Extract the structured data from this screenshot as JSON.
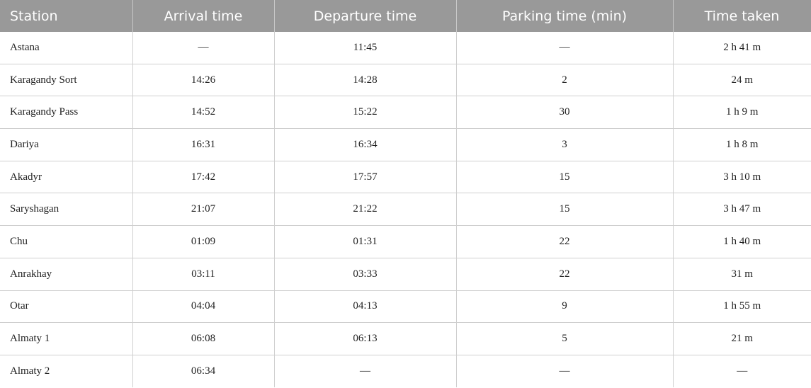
{
  "colors": {
    "header_bg": "#999999",
    "header_text": "#ffffff",
    "grid": "#cfcfcf"
  },
  "table": {
    "headers": [
      "Station",
      "Arrival time",
      "Departure time",
      "Parking time (min)",
      "Time taken"
    ],
    "rows": [
      [
        "Astana",
        "—",
        "11:45",
        "—",
        "2 h 41 m"
      ],
      [
        "Karagandy Sort",
        "14:26",
        "14:28",
        "2",
        "24 m"
      ],
      [
        "Karagandy Pass",
        "14:52",
        "15:22",
        "30",
        "1 h 9 m"
      ],
      [
        "Dariya",
        "16:31",
        "16:34",
        "3",
        "1 h 8 m"
      ],
      [
        "Akadyr",
        "17:42",
        "17:57",
        "15",
        "3 h 10 m"
      ],
      [
        "Saryshagan",
        "21:07",
        "21:22",
        "15",
        "3 h 47 m"
      ],
      [
        "Chu",
        "01:09",
        "01:31",
        "22",
        "1 h 40 m"
      ],
      [
        "Anrakhay",
        "03:11",
        "03:33",
        "22",
        "31 m"
      ],
      [
        "Otar",
        "04:04",
        "04:13",
        "9",
        "1 h 55 m"
      ],
      [
        "Almaty 1",
        "06:08",
        "06:13",
        "5",
        "21 m"
      ],
      [
        "Almaty 2",
        "06:34",
        "—",
        "—",
        "—"
      ]
    ]
  }
}
